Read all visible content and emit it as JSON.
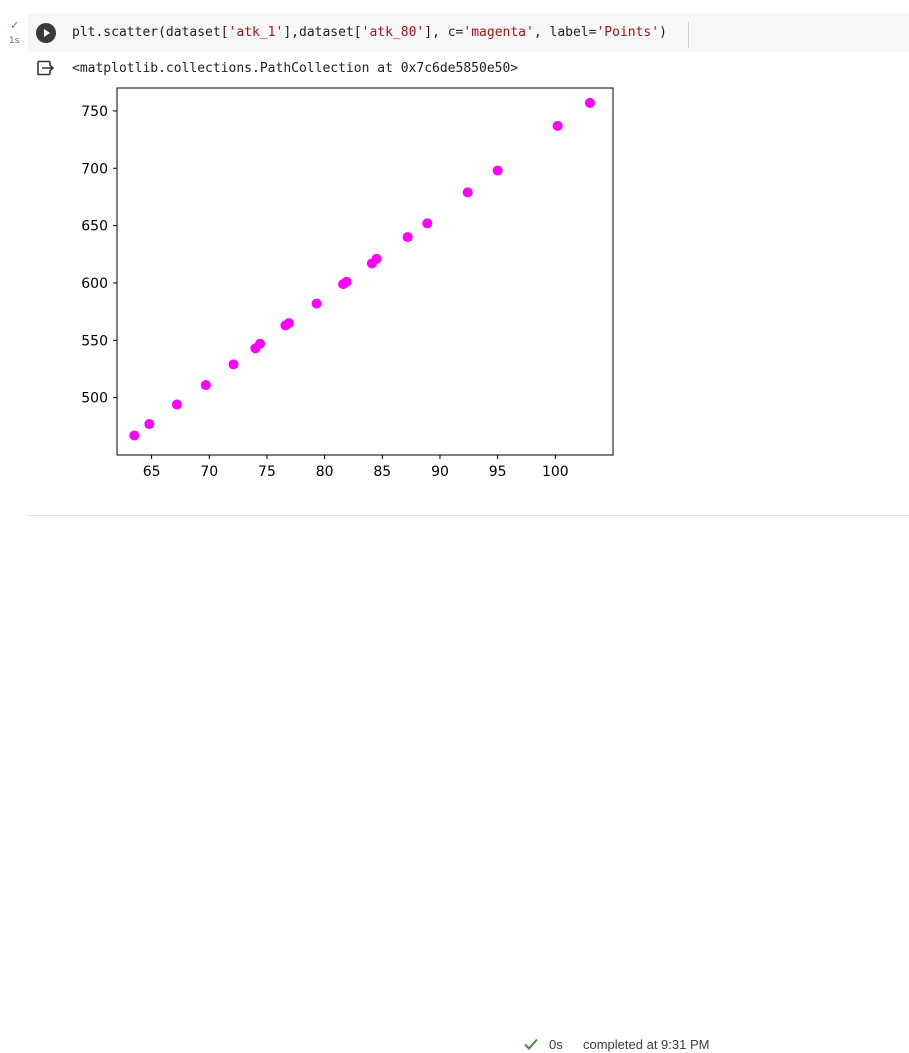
{
  "cell": {
    "exec_time": "1s",
    "code_prefix": "plt.scatter(dataset[",
    "code_str1": "'atk_1'",
    "code_mid1": "],dataset[",
    "code_str2": "'atk_80'",
    "code_mid2": "], c=",
    "code_str3": "'magenta'",
    "code_mid3": ", label=",
    "code_str4": "'Points'",
    "code_suffix": ")",
    "output_text": "<matplotlib.collections.PathCollection at 0x7c6de5850e50>"
  },
  "status": {
    "time": "0s",
    "completed": "completed at 9:31 PM"
  },
  "colors": {
    "marker": "#ff00ff",
    "success": "#4b8a3a"
  },
  "icons": {
    "check": "check-icon",
    "run": "run-cell-icon",
    "output": "output-icon"
  },
  "chart_data": {
    "type": "scatter",
    "xlim": [
      62,
      105
    ],
    "ylim": [
      450,
      770
    ],
    "xticks": [
      65,
      70,
      75,
      80,
      85,
      90,
      95,
      100
    ],
    "yticks": [
      500,
      550,
      600,
      650,
      700,
      750
    ],
    "grid": false,
    "x": [
      63.5,
      64.8,
      67.2,
      69.7,
      72.1,
      74.0,
      74.4,
      76.6,
      76.9,
      79.3,
      81.6,
      81.9,
      84.1,
      84.5,
      87.2,
      88.9,
      92.4,
      95.0,
      100.2,
      103.0
    ],
    "y": [
      467,
      477,
      494,
      511,
      529,
      543,
      547,
      563,
      565,
      582,
      599,
      601,
      617,
      621,
      640,
      652,
      679,
      698,
      737,
      757
    ]
  }
}
